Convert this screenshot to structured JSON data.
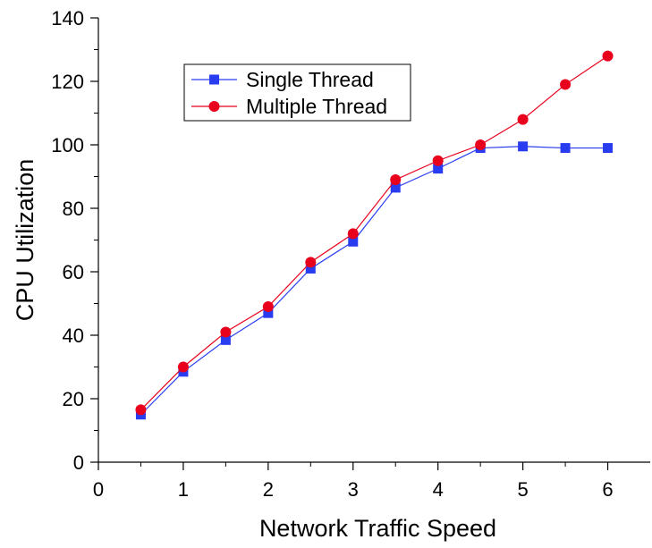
{
  "chart_data": {
    "type": "line",
    "title": "",
    "xlabel": "Network Traffic Speed",
    "ylabel": "CPU Utilization",
    "xlim": [
      0,
      6.5
    ],
    "ylim": [
      0,
      140
    ],
    "xticks": [
      0,
      1,
      2,
      3,
      4,
      5,
      6
    ],
    "yticks": [
      0,
      20,
      40,
      60,
      80,
      100,
      120,
      140
    ],
    "grid": false,
    "legend_position": "top-left",
    "x": [
      0.5,
      1,
      1.5,
      2,
      2.5,
      3,
      3.5,
      4,
      4.5,
      5,
      5.5,
      6
    ],
    "series": [
      {
        "name": "Single Thread",
        "color": "#2a3cf0",
        "marker": "square",
        "values": [
          15,
          28.5,
          38.5,
          47,
          61,
          69.5,
          86.5,
          92.5,
          99,
          99.5,
          99,
          99
        ]
      },
      {
        "name": "Multiple Thread",
        "color": "#e8001c",
        "marker": "circle",
        "values": [
          16.5,
          30,
          41,
          49,
          63,
          72,
          89,
          95,
          100,
          108,
          119,
          128
        ]
      }
    ]
  }
}
